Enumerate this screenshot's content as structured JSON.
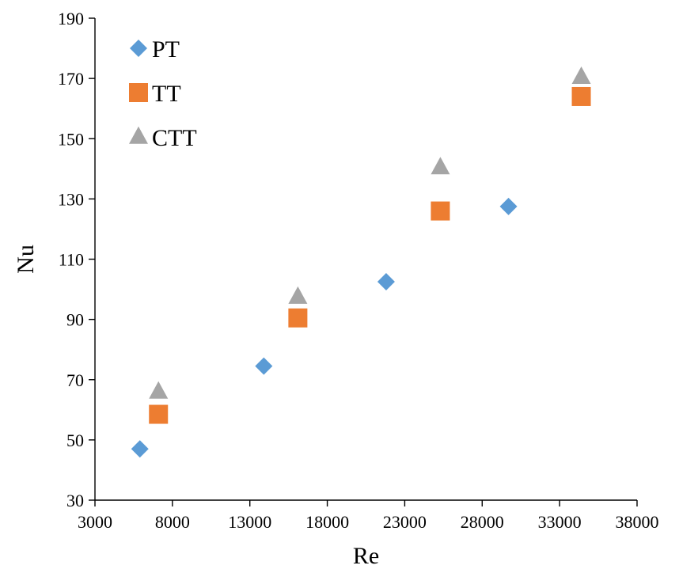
{
  "chart_data": {
    "type": "scatter",
    "xlabel": "Re",
    "ylabel": "Nu",
    "xlim": [
      3000,
      38000
    ],
    "ylim": [
      30,
      190
    ],
    "xticks": [
      3000,
      8000,
      13000,
      18000,
      23000,
      28000,
      33000,
      38000
    ],
    "yticks": [
      30,
      50,
      70,
      90,
      110,
      130,
      150,
      170,
      190
    ],
    "grid": false,
    "legend_position": "top-left",
    "series": [
      {
        "name": "PT",
        "marker": "diamond",
        "color": "#5B9BD5",
        "points": [
          {
            "x": 5900,
            "y": 47
          },
          {
            "x": 13900,
            "y": 74.5
          },
          {
            "x": 21800,
            "y": 102.5
          },
          {
            "x": 29700,
            "y": 127.5
          }
        ]
      },
      {
        "name": "TT",
        "marker": "square",
        "color": "#ED7D31",
        "points": [
          {
            "x": 7100,
            "y": 58.5
          },
          {
            "x": 16100,
            "y": 90.5
          },
          {
            "x": 25300,
            "y": 126
          },
          {
            "x": 34400,
            "y": 164
          }
        ]
      },
      {
        "name": "CTT",
        "marker": "triangle",
        "color": "#A5A5A5",
        "points": [
          {
            "x": 7100,
            "y": 66
          },
          {
            "x": 16100,
            "y": 97.5
          },
          {
            "x": 25300,
            "y": 140.5
          },
          {
            "x": 34400,
            "y": 170.5
          }
        ]
      }
    ]
  }
}
